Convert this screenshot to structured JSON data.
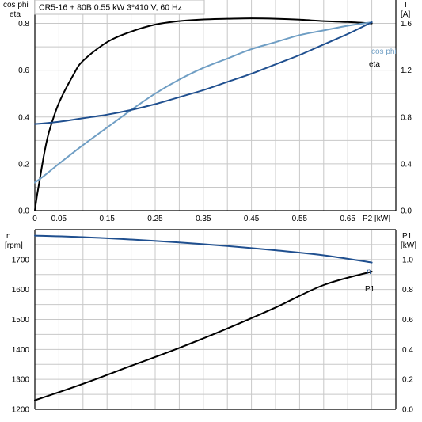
{
  "title": "CR5-16 + 80B   0.55 kW   3*410 V, 60 Hz",
  "colors": {
    "eta": "#000000",
    "cos_phi": "#6f9ec4",
    "current": "#1f4f8f",
    "speed": "#1f4f8f",
    "p1": "#000000",
    "grid": "#c8c8c8"
  },
  "chart_data": [
    {
      "type": "line",
      "name_panel": "top",
      "xlabel": "P2 [kW]",
      "ylabel_left": [
        "cos phi",
        "eta"
      ],
      "ylabel_right": [
        "I",
        "[A]"
      ],
      "xlim": [
        0,
        0.75
      ],
      "ylim_left": [
        0,
        0.9
      ],
      "ylim_right": [
        0,
        1.8
      ],
      "x_ticks": [
        "0",
        "0.05",
        "0.15",
        "0.25",
        "0.35",
        "0.45",
        "0.55",
        "0.65"
      ],
      "x_tick_values": [
        0,
        0.05,
        0.15,
        0.25,
        0.35,
        0.45,
        0.55,
        0.65
      ],
      "y_ticks_left": [
        "0.0",
        "0.2",
        "0.4",
        "0.6",
        "0.8"
      ],
      "y_tick_values_left": [
        0,
        0.2,
        0.4,
        0.6,
        0.8
      ],
      "y_ticks_right": [
        "0.0",
        "0.4",
        "0.8",
        "1.2",
        "1.6"
      ],
      "y_tick_values_right": [
        0,
        0.4,
        0.8,
        1.2,
        1.6
      ],
      "grid": true,
      "series": [
        {
          "name": "eta",
          "axis": "left",
          "x": [
            0,
            0.005,
            0.01,
            0.02,
            0.03,
            0.05,
            0.08,
            0.1,
            0.15,
            0.2,
            0.25,
            0.3,
            0.35,
            0.4,
            0.45,
            0.5,
            0.55,
            0.6,
            0.65,
            0.7
          ],
          "values": [
            0.0,
            0.07,
            0.13,
            0.25,
            0.34,
            0.46,
            0.58,
            0.64,
            0.72,
            0.765,
            0.795,
            0.81,
            0.817,
            0.82,
            0.822,
            0.82,
            0.816,
            0.81,
            0.806,
            0.8
          ]
        },
        {
          "name": "cos phi",
          "axis": "left",
          "x": [
            0,
            0.02,
            0.05,
            0.1,
            0.15,
            0.2,
            0.25,
            0.3,
            0.35,
            0.4,
            0.45,
            0.5,
            0.55,
            0.6,
            0.65,
            0.7
          ],
          "values": [
            0.12,
            0.15,
            0.2,
            0.28,
            0.355,
            0.43,
            0.5,
            0.56,
            0.61,
            0.65,
            0.69,
            0.72,
            0.75,
            0.77,
            0.79,
            0.805
          ]
        },
        {
          "name": "I",
          "axis": "right",
          "x": [
            0,
            0.05,
            0.1,
            0.15,
            0.2,
            0.25,
            0.3,
            0.35,
            0.4,
            0.45,
            0.5,
            0.55,
            0.6,
            0.65,
            0.7
          ],
          "values": [
            0.74,
            0.76,
            0.79,
            0.82,
            0.86,
            0.91,
            0.97,
            1.03,
            1.1,
            1.17,
            1.25,
            1.33,
            1.42,
            1.51,
            1.61
          ]
        }
      ],
      "curve_labels": {
        "cos_phi": "cos phi",
        "eta": "eta"
      }
    },
    {
      "type": "line",
      "name_panel": "bottom",
      "ylabel_left": [
        "n",
        "[rpm]"
      ],
      "ylabel_right": [
        "P1",
        "[kW]"
      ],
      "xlim": [
        0,
        0.75
      ],
      "ylim_left": [
        1200,
        1800
      ],
      "ylim_right": [
        0,
        1.2
      ],
      "y_ticks_left": [
        "1200",
        "1300",
        "1400",
        "1500",
        "1600",
        "1700"
      ],
      "y_tick_values_left": [
        1200,
        1300,
        1400,
        1500,
        1600,
        1700
      ],
      "y_ticks_right": [
        "0.0",
        "0.2",
        "0.4",
        "0.6",
        "0.8",
        "1.0"
      ],
      "y_tick_values_right": [
        0,
        0.2,
        0.4,
        0.6,
        0.8,
        1.0
      ],
      "grid": true,
      "series": [
        {
          "name": "n",
          "axis": "left",
          "x": [
            0,
            0.1,
            0.2,
            0.3,
            0.4,
            0.5,
            0.6,
            0.7
          ],
          "values": [
            1780,
            1775,
            1767,
            1757,
            1745,
            1731,
            1714,
            1690
          ]
        },
        {
          "name": "P1",
          "axis": "right",
          "x": [
            0,
            0.1,
            0.2,
            0.3,
            0.4,
            0.5,
            0.6,
            0.7
          ],
          "values": [
            0.06,
            0.17,
            0.29,
            0.41,
            0.54,
            0.68,
            0.83,
            0.92
          ]
        }
      ],
      "curve_labels": {
        "n": "n",
        "p1": "P1"
      }
    }
  ]
}
